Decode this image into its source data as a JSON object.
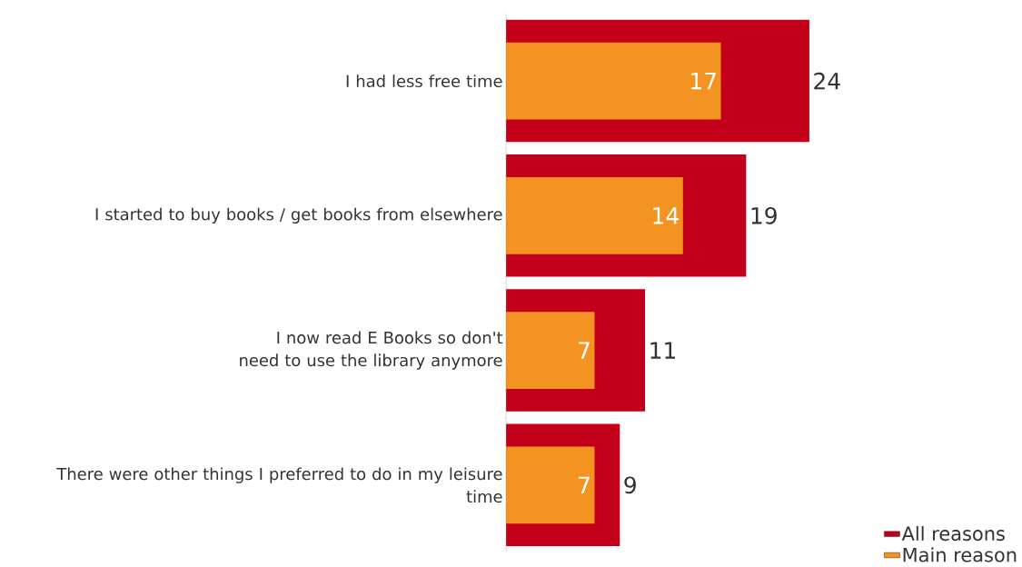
{
  "chart_data": {
    "type": "bar",
    "orientation": "horizontal",
    "data_labels": true,
    "legend": "bottom right",
    "categories": [
      "I had less free time",
      "I started to buy books / get books from elsewhere",
      "I now read E Books so don't need to use the library anymore",
      "There were other things I preferred to do in my leisure time"
    ],
    "series": [
      {
        "name": "All reasons",
        "color": "#c3001a",
        "values": [
          24,
          19,
          11,
          9
        ]
      },
      {
        "name": "Main reason",
        "color": "#f39321",
        "values": [
          17,
          14,
          7,
          7
        ]
      }
    ]
  }
}
